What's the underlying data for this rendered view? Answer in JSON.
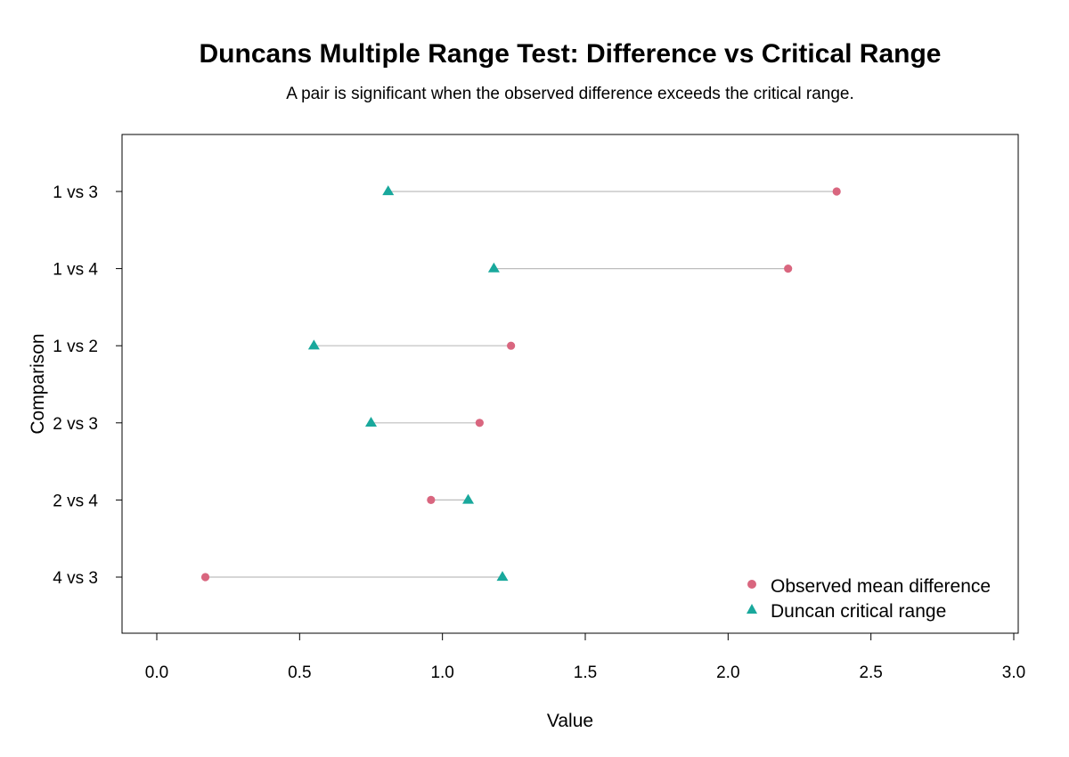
{
  "colors": {
    "observed": "#d9667f",
    "critical": "#19a89c",
    "connector": "#bdbdbd",
    "frame": "#000000"
  },
  "chart_data": {
    "type": "scatter",
    "title": "Duncans Multiple Range Test: Difference vs Critical Range",
    "subtitle": "A pair is significant when the observed difference exceeds the critical range.",
    "xlabel": "Value",
    "ylabel": "Comparison",
    "xlim": [
      0,
      3
    ],
    "xticks": [
      "0.0",
      "0.5",
      "1.0",
      "1.5",
      "2.0",
      "2.5",
      "3.0"
    ],
    "categories": [
      "1 vs 3",
      "1 vs 4",
      "1 vs 2",
      "2 vs 3",
      "2 vs 4",
      "4 vs 3"
    ],
    "series": [
      {
        "name": "Observed mean difference",
        "marker": "circle",
        "values": [
          2.38,
          2.21,
          1.24,
          1.13,
          0.96,
          0.17
        ]
      },
      {
        "name": "Duncan critical range",
        "marker": "triangle",
        "values": [
          0.81,
          1.18,
          0.55,
          0.75,
          1.09,
          1.21
        ]
      }
    ],
    "grid": false,
    "legend_position": "bottom-right"
  }
}
